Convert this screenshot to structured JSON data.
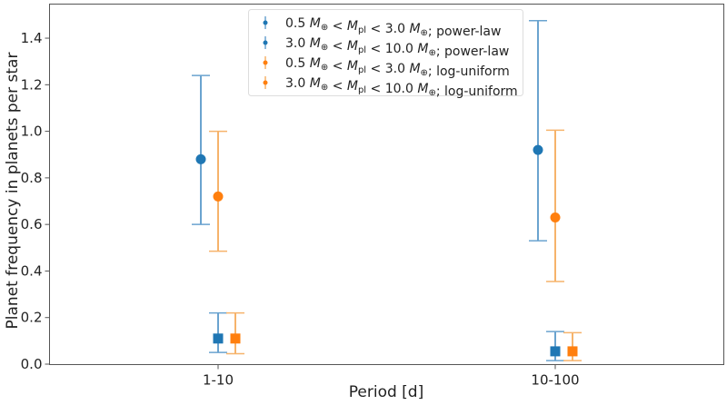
{
  "chart_data": {
    "type": "scatter",
    "title": "",
    "xlabel": "Period [d]",
    "ylabel": "Planet frequency in planets per star",
    "categories": [
      "1-10",
      "10-100"
    ],
    "ylim": [
      0.0,
      1.54
    ],
    "yticks": [
      "0.0",
      "0.2",
      "0.4",
      "0.6",
      "0.8",
      "1.0",
      "1.2",
      "1.4"
    ],
    "grid": false,
    "legend_position": "top-center",
    "series": [
      {
        "name": "0.5 M⊕ < Mpl < 3.0 M⊕; power-law",
        "legend": {
          "lo": "0.5",
          "hi": "3.0",
          "model": "power-law"
        },
        "color": "#1f77b4",
        "marker": "square",
        "offset": 0,
        "values": [
          0.11,
          0.055
        ],
        "upper": [
          0.22,
          0.14
        ],
        "lower": [
          0.05,
          0.015
        ]
      },
      {
        "name": "3.0 M⊕ < Mpl < 10.0 M⊕; power-law",
        "legend": {
          "lo": "3.0",
          "hi": "10.0",
          "model": "power-law"
        },
        "color": "#1f77b4",
        "marker": "circle",
        "offset": -1,
        "values": [
          0.88,
          0.92
        ],
        "upper": [
          1.24,
          1.475
        ],
        "lower": [
          0.6,
          0.53
        ]
      },
      {
        "name": "0.5 M⊕ < Mpl < 3.0 M⊕; log-uniform",
        "legend": {
          "lo": "0.5",
          "hi": "3.0",
          "model": "log-uniform"
        },
        "color": "#ff7f0e",
        "marker": "square",
        "offset": 1,
        "values": [
          0.11,
          0.055
        ],
        "upper": [
          0.22,
          0.135
        ],
        "lower": [
          0.045,
          0.015
        ]
      },
      {
        "name": "3.0 M⊕ < Mpl < 10.0 M⊕; log-uniform",
        "legend": {
          "lo": "3.0",
          "hi": "10.0",
          "model": "log-uniform"
        },
        "color": "#ff7f0e",
        "marker": "circle",
        "offset": 0,
        "values": [
          0.72,
          0.63
        ],
        "upper": [
          1.0,
          1.005
        ],
        "lower": [
          0.485,
          0.355
        ]
      }
    ],
    "legend_symbols": {
      "earth": "⊕",
      "mass": "M",
      "pl": "pl",
      "lt": "<",
      "sep": ";"
    }
  }
}
